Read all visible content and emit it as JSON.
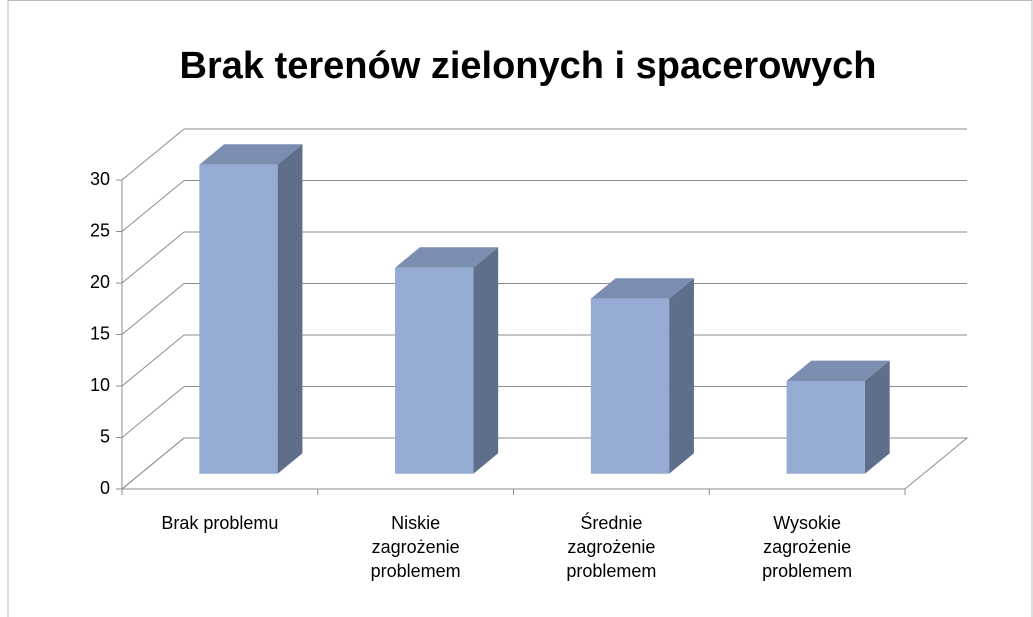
{
  "chart_data": {
    "type": "bar3d",
    "title": "Brak terenów zielonych i spacerowych",
    "categories": [
      "Brak problemu",
      "Niskie zagrożenie problemem",
      "Średnie zagrożenie problemem",
      "Wysokie zagrożenie problemem"
    ],
    "values": [
      30,
      20,
      17,
      9
    ],
    "color": "#95abd4",
    "ylim": [
      0,
      30
    ],
    "yticks": [
      0,
      5,
      10,
      15,
      20,
      25,
      30
    ],
    "grid": true
  }
}
